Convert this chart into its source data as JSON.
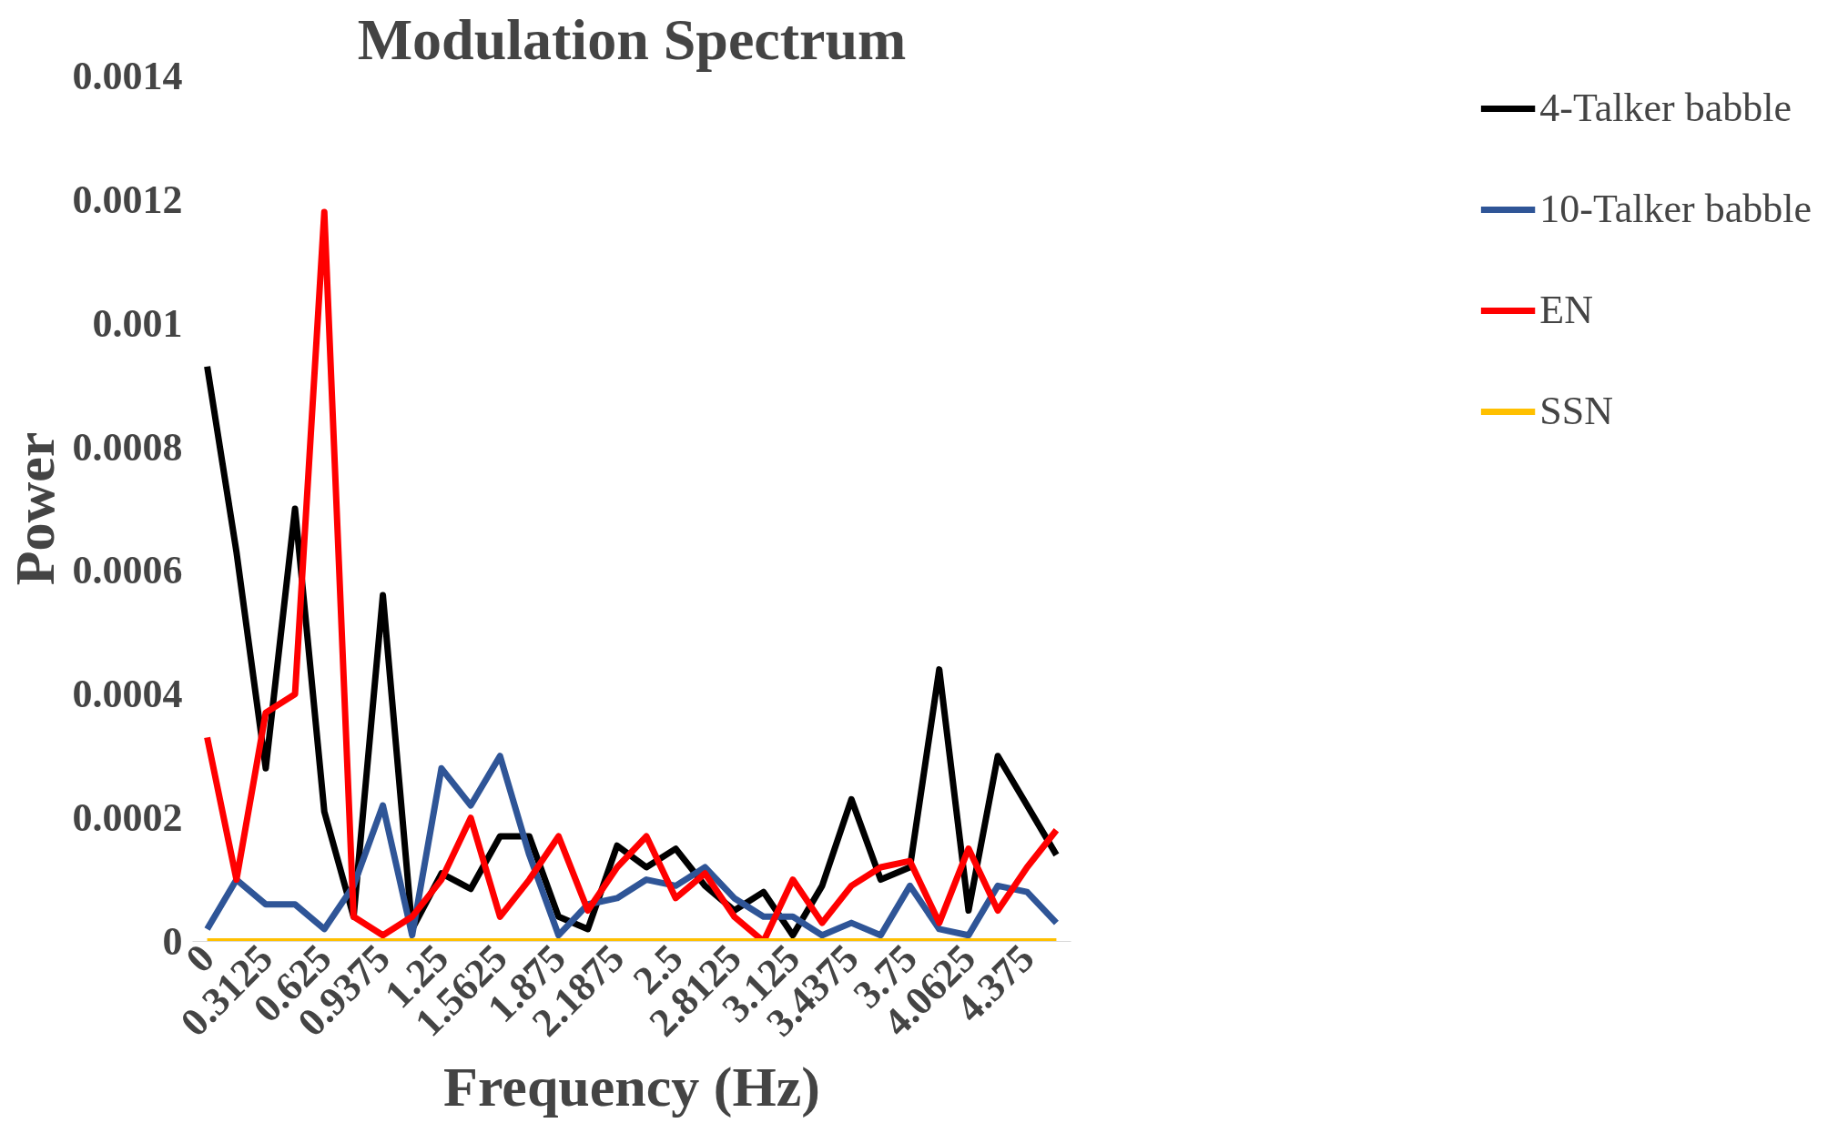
{
  "chart_data": {
    "type": "line",
    "title": "Modulation Spectrum",
    "xlabel": "Frequency (Hz)",
    "ylabel": "Power",
    "categories": [
      "0",
      null,
      "0.3125",
      null,
      "0.625",
      null,
      "0.9375",
      null,
      "1.25",
      null,
      "1.5625",
      null,
      "1.875",
      null,
      "2.1875",
      null,
      "2.5",
      null,
      "2.8125",
      null,
      "3.125",
      null,
      "3.4375",
      null,
      "3.75",
      null,
      "4.0625",
      null,
      "4.375",
      null
    ],
    "series": [
      {
        "name": "4-Talker babble",
        "color": "#000000",
        "values": [
          0.00093,
          0.00063,
          0.00028,
          0.0007,
          0.00021,
          4e-05,
          0.00056,
          2e-05,
          0.00011,
          8.5e-05,
          0.00017,
          0.00017,
          4e-05,
          2e-05,
          0.000155,
          0.00012,
          0.00015,
          9e-05,
          5e-05,
          8e-05,
          1e-05,
          9e-05,
          0.00023,
          0.0001,
          0.00012,
          0.00044,
          5e-05,
          0.0003,
          0.00022,
          0.00014
        ]
      },
      {
        "name": "10-Talker babble",
        "color": "#2f5597",
        "values": [
          2e-05,
          0.0001,
          6e-05,
          6e-05,
          2e-05,
          9e-05,
          0.00022,
          1e-05,
          0.00028,
          0.00022,
          0.0003,
          0.00014,
          1e-05,
          6e-05,
          7e-05,
          0.0001,
          9e-05,
          0.00012,
          7e-05,
          4e-05,
          4e-05,
          1e-05,
          3e-05,
          1e-05,
          9e-05,
          2e-05,
          1e-05,
          9e-05,
          8e-05,
          3e-05
        ]
      },
      {
        "name": "EN",
        "color": "#ff0000",
        "values": [
          0.00033,
          0.0001,
          0.00037,
          0.0004,
          0.00118,
          4e-05,
          1e-05,
          4e-05,
          0.0001,
          0.0002,
          4e-05,
          0.0001,
          0.00017,
          5e-05,
          0.00012,
          0.00017,
          7e-05,
          0.00011,
          4e-05,
          0.0,
          0.0001,
          3e-05,
          9e-05,
          0.00012,
          0.00013,
          3e-05,
          0.00015,
          5e-05,
          0.00012,
          0.00018
        ]
      },
      {
        "name": "SSN",
        "color": "#ffc000",
        "values": [
          0,
          0,
          0,
          0,
          0,
          0,
          0,
          0,
          0,
          0,
          0,
          0,
          0,
          0,
          0,
          0,
          0,
          0,
          0,
          0,
          0,
          0,
          0,
          0,
          0,
          0,
          0,
          0,
          0,
          0
        ]
      }
    ],
    "ylim": [
      0,
      0.0014
    ],
    "yticks": [
      0,
      0.0002,
      0.0004,
      0.0006,
      0.0008,
      0.001,
      0.0012,
      0.0014
    ],
    "grid": false,
    "legend": "right",
    "marker": "none",
    "line_style": "solid"
  }
}
